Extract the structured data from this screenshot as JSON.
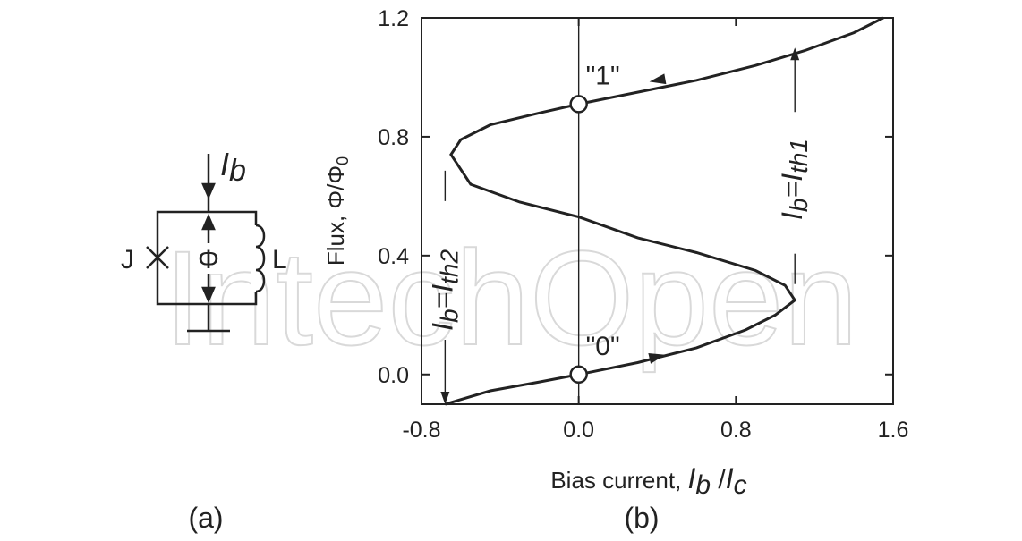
{
  "watermark": {
    "text": "IntechOpen"
  },
  "panels": {
    "a": "(a)",
    "b": "(b)"
  },
  "circuit": {
    "junction": "J",
    "inductor": "L",
    "flux": "Φ",
    "bias_main": "I",
    "bias_sub": "b"
  },
  "chart_data": {
    "type": "line",
    "xlabel": "Bias current, I_b/I_c",
    "ylabel": "Flux, Φ/Φ_0",
    "xlim": [
      -0.8,
      1.6
    ],
    "ylim": [
      -0.1,
      1.2
    ],
    "xticks": [
      "-0.8",
      "0.0",
      "0.8",
      "1.6"
    ],
    "yticks": [
      "0.0",
      "0.4",
      "0.8",
      "1.2"
    ],
    "xtick_values": [
      -0.8,
      0.0,
      0.8,
      1.6
    ],
    "ytick_values": [
      0.0,
      0.4,
      0.8,
      1.2
    ],
    "grid": false,
    "curve": {
      "x": [
        -0.68,
        -0.45,
        -0.2,
        0.0,
        0.3,
        0.6,
        0.85,
        1.0,
        1.1,
        1.05,
        0.9,
        0.6,
        0.3,
        0.0,
        -0.3,
        -0.55,
        -0.65,
        -0.6,
        -0.45,
        -0.2,
        0.0,
        0.3,
        0.6,
        0.9,
        1.15,
        1.4,
        1.55
      ],
      "y": [
        -0.1,
        -0.055,
        -0.025,
        0.0,
        0.04,
        0.09,
        0.15,
        0.2,
        0.25,
        0.3,
        0.35,
        0.41,
        0.46,
        0.53,
        0.58,
        0.64,
        0.74,
        0.79,
        0.84,
        0.88,
        0.91,
        0.95,
        0.99,
        1.04,
        1.09,
        1.15,
        1.2
      ]
    },
    "vertical_line_x": 0.0,
    "states": [
      {
        "label": "\"0\"",
        "x": 0.0,
        "y": 0.0
      },
      {
        "label": "\"1\"",
        "x": 0.0,
        "y": 0.91
      }
    ],
    "curve_arrows": [
      {
        "x": 0.4,
        "y": 0.06,
        "direction": "right"
      },
      {
        "x": 0.4,
        "y": 0.99,
        "direction": "left"
      }
    ],
    "threshold_arrows": [
      {
        "label_main": "I",
        "label_sub1": "b",
        "label_eq": "=I",
        "label_sub2": "th2",
        "x": -0.68,
        "y_from": 0.74,
        "y_to": -0.1,
        "direction": "down"
      },
      {
        "label_main": "I",
        "label_sub1": "b",
        "label_eq": "=I",
        "label_sub2": "th1",
        "x": 1.1,
        "y_from": 0.25,
        "y_to": 1.1,
        "direction": "up"
      }
    ],
    "xlabel_parts": {
      "prefix": "Bias current, ",
      "i1": "I",
      "s1": "b",
      "slash": " /",
      "i2": "I",
      "s2": "c"
    },
    "ylabel_parts": {
      "prefix": "Flux, ",
      "phi": "Φ/Φ",
      "sub": "0"
    }
  }
}
